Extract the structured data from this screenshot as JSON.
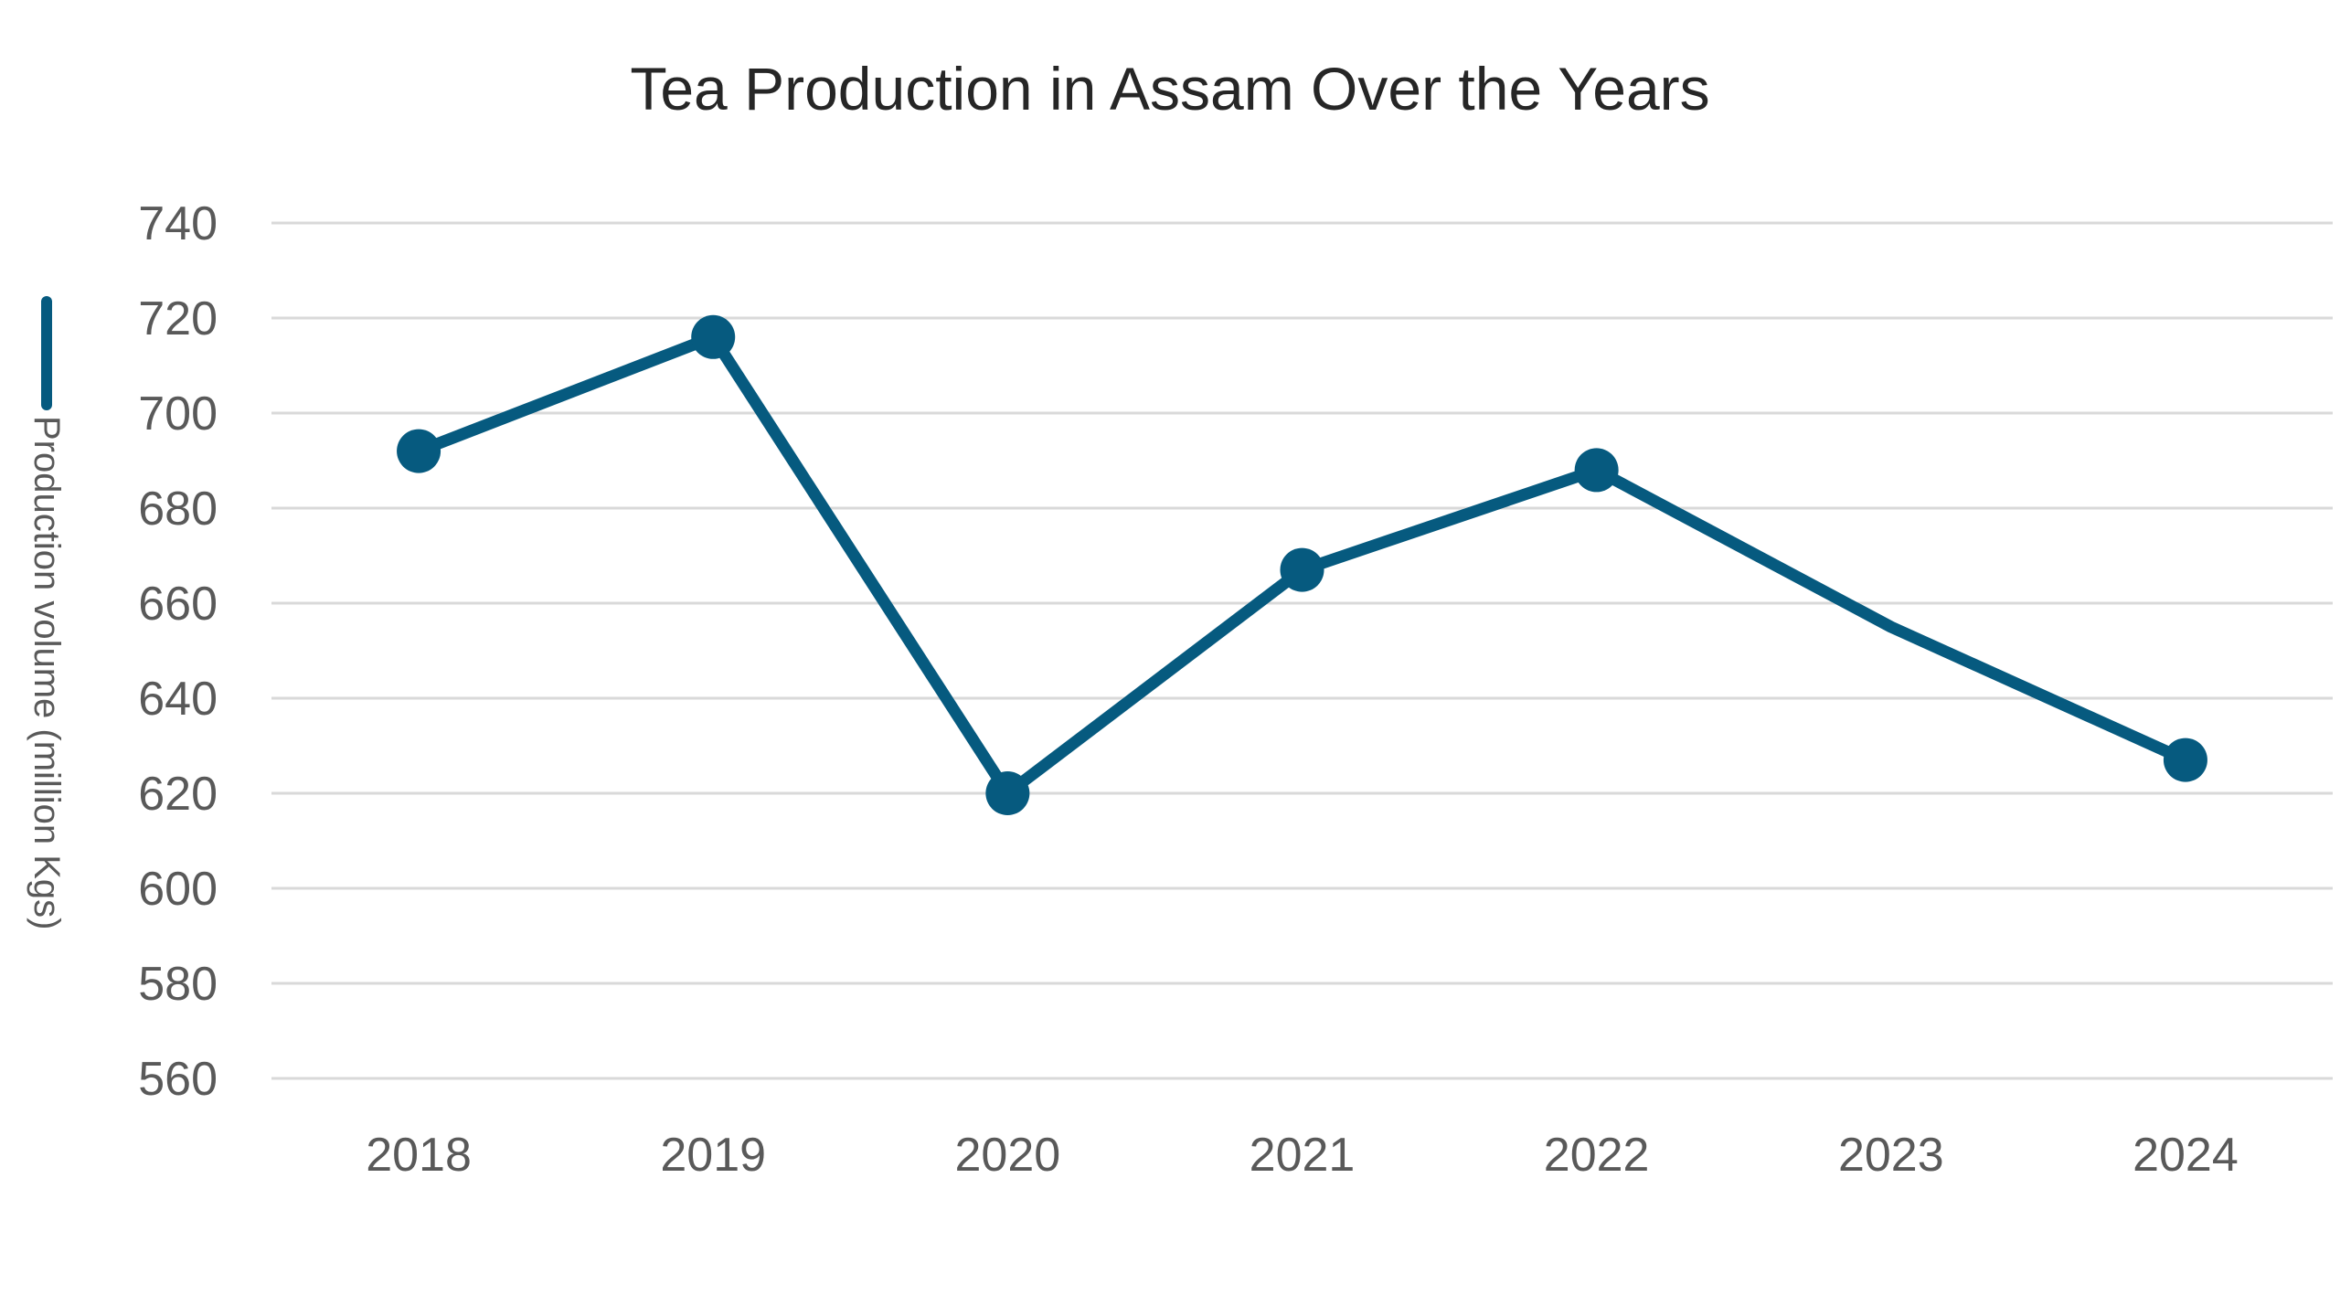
{
  "chart_data": {
    "type": "line",
    "title": "Tea Production in Assam Over the Years",
    "xlabel": "",
    "ylabel": "Production volume (million Kgs)",
    "categories": [
      "2018",
      "2019",
      "2020",
      "2021",
      "2022",
      "2023",
      "2024"
    ],
    "series": [
      {
        "name": "",
        "values": [
          692,
          716,
          620,
          667,
          688,
          655,
          627
        ],
        "markers": [
          true,
          true,
          true,
          true,
          true,
          false,
          true
        ],
        "color": "#065a7f"
      }
    ],
    "ylim": [
      560,
      740
    ],
    "yticks": [
      "560",
      "580",
      "600",
      "620",
      "640",
      "660",
      "680",
      "700",
      "720",
      "740"
    ],
    "grid": true,
    "legend": "left, vertical line swatch beside y-axis label"
  }
}
